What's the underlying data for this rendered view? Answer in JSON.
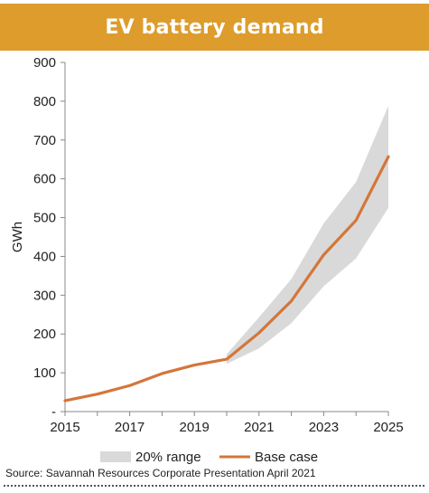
{
  "header": {
    "title": "EV battery demand"
  },
  "source_note": "Source: Savannah Resources Corporate Presentation April 2021",
  "colors": {
    "banner": "#dd9c2c",
    "base_case": "#d4763a",
    "range": "#d9d9d9",
    "axis": "#888888"
  },
  "chart_data": {
    "type": "line",
    "title": "EV battery demand",
    "xlabel": "",
    "ylabel": "GWh",
    "x": [
      2015,
      2016,
      2017,
      2018,
      2019,
      2020,
      2021,
      2022,
      2023,
      2024,
      2025
    ],
    "xticks": [
      "2015",
      "2017",
      "2019",
      "2021",
      "2023",
      "2025"
    ],
    "yticks": [
      "-",
      "100",
      "200",
      "300",
      "400",
      "500",
      "600",
      "700",
      "800",
      "900"
    ],
    "ylim": [
      0,
      900
    ],
    "grid": false,
    "legend_position": "bottom",
    "series": [
      {
        "name": "20% range",
        "kind": "band",
        "x": [
          2020,
          2021,
          2022,
          2023,
          2024,
          2025
        ],
        "lower": [
          123,
          163,
          228,
          323,
          395,
          525
        ],
        "upper": [
          148,
          243,
          342,
          485,
          592,
          788
        ]
      },
      {
        "name": "Base case",
        "kind": "line",
        "x": [
          2015,
          2016,
          2017,
          2018,
          2019,
          2020,
          2021,
          2022,
          2023,
          2024,
          2025
        ],
        "values": [
          28,
          45,
          67,
          98,
          120,
          135,
          203,
          285,
          404,
          493,
          657
        ]
      }
    ]
  }
}
